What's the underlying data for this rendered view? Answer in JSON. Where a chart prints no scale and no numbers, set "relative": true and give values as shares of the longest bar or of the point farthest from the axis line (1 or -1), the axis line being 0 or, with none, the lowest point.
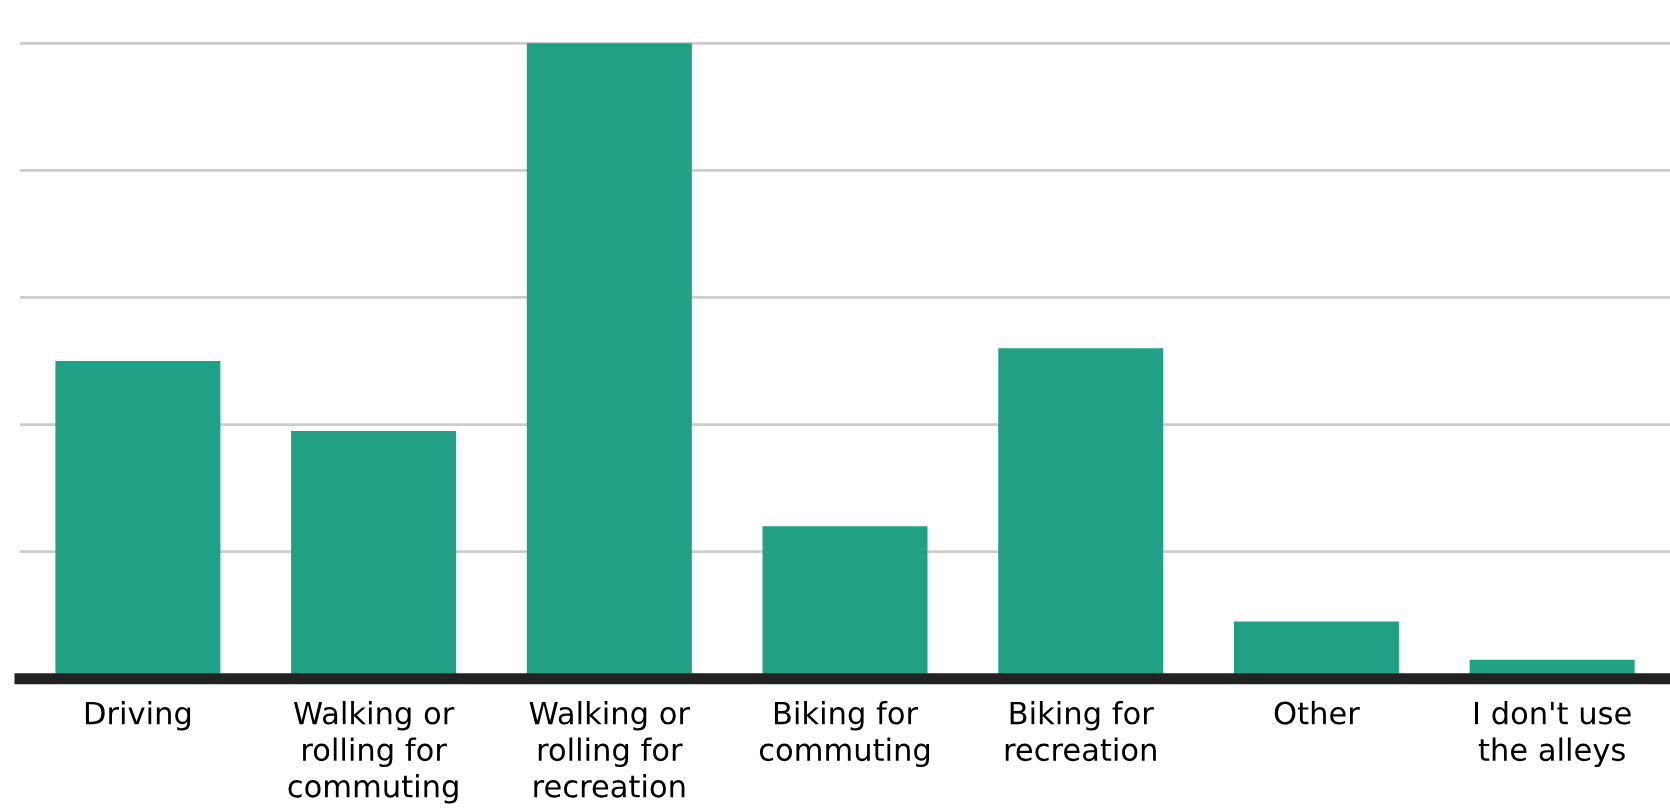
{
  "chart_data": {
    "type": "bar",
    "relative": true,
    "grid": "y",
    "color": "#21a083",
    "categories": [
      "Driving",
      "Walking or rolling for commuting",
      "Walking or rolling for recreation",
      "Biking for commuting",
      "Biking for recreation",
      "Other",
      "I don't use the alleys"
    ],
    "values": [
      0.5,
      0.39,
      1,
      0.24,
      0.52,
      0.09,
      0.03
    ]
  }
}
